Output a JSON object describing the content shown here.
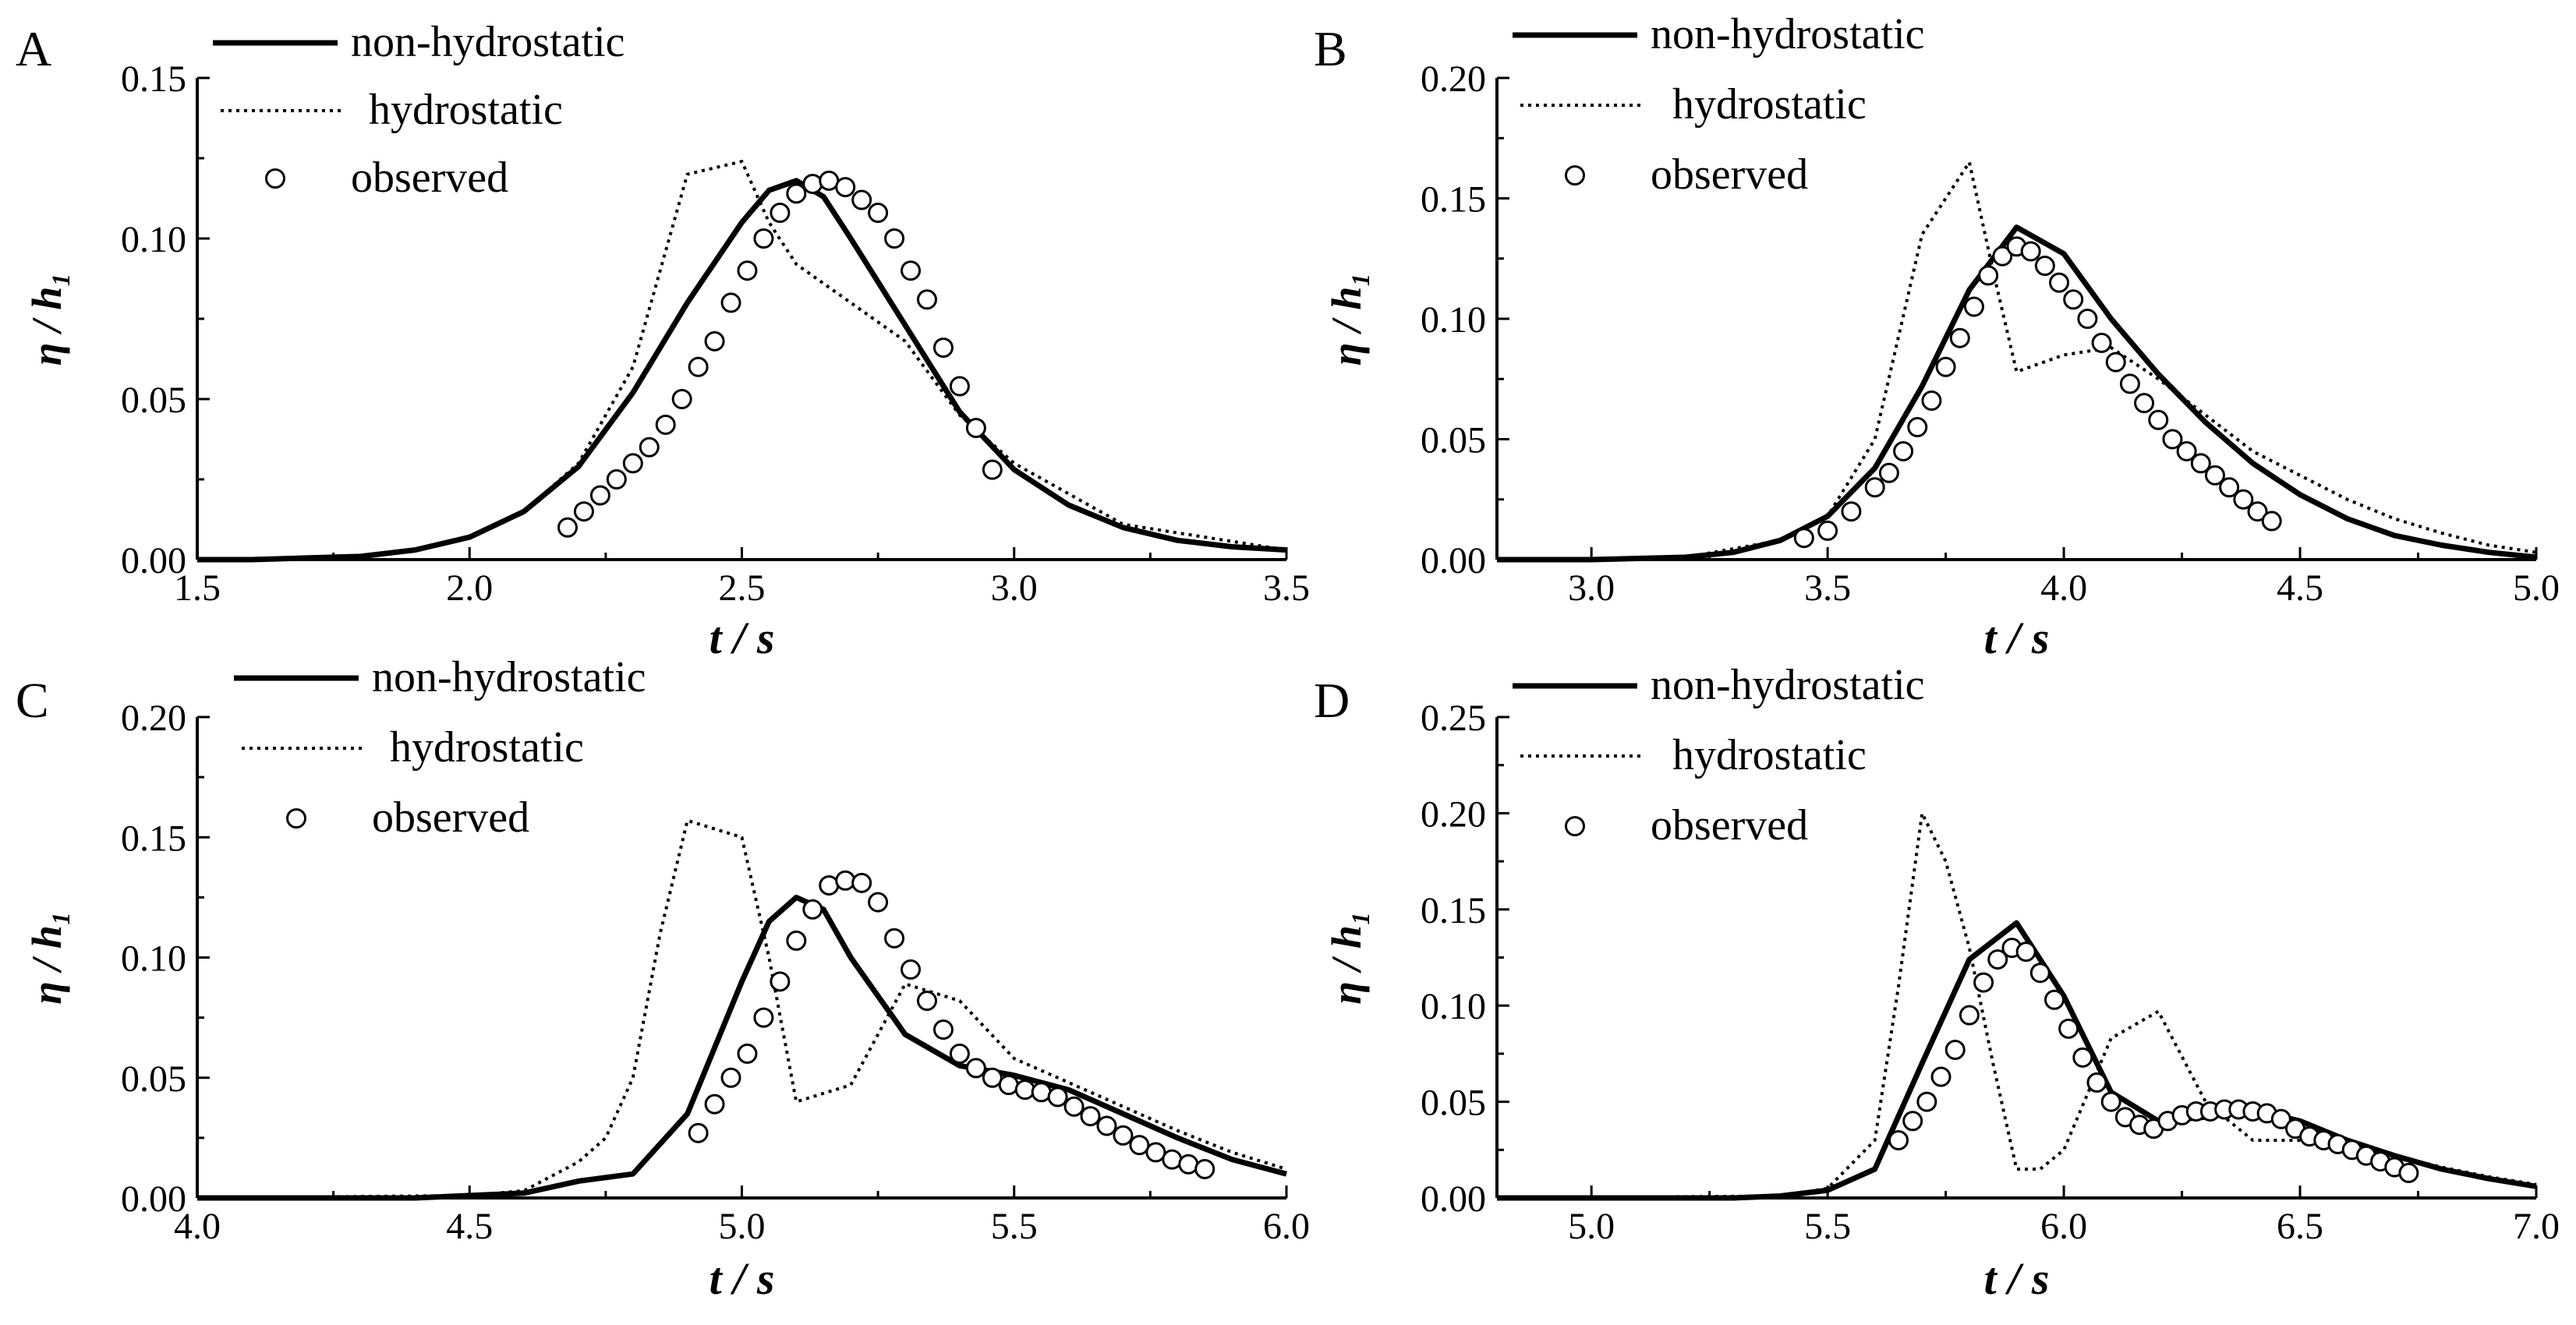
{
  "chart_data": [
    {
      "type": "line",
      "panel_label": "A",
      "xlabel": "t / s",
      "ylabel": "η / h₁",
      "xlim": [
        1.5,
        3.5
      ],
      "ylim": [
        0.0,
        0.15
      ],
      "xticks": [
        "1.5",
        "2.0",
        "2.5",
        "3.0",
        "3.5"
      ],
      "yticks": [
        "0.00",
        "0.05",
        "0.10",
        "0.15"
      ],
      "legend": [
        "non-hydrostatic",
        "hydrostatic",
        "observed"
      ],
      "series": [
        {
          "name": "non-hydrostatic",
          "style": "solid",
          "x": [
            1.5,
            1.6,
            1.7,
            1.8,
            1.9,
            2.0,
            2.1,
            2.2,
            2.3,
            2.4,
            2.5,
            2.55,
            2.6,
            2.65,
            2.7,
            2.8,
            2.9,
            3.0,
            3.1,
            3.2,
            3.3,
            3.4,
            3.5
          ],
          "y": [
            0,
            0,
            0.0005,
            0.001,
            0.003,
            0.007,
            0.015,
            0.029,
            0.052,
            0.08,
            0.105,
            0.115,
            0.118,
            0.113,
            0.1,
            0.073,
            0.046,
            0.028,
            0.017,
            0.01,
            0.006,
            0.004,
            0.003
          ]
        },
        {
          "name": "hydrostatic",
          "style": "dotted",
          "x": [
            1.5,
            1.8,
            1.9,
            2.0,
            2.1,
            2.2,
            2.3,
            2.35,
            2.4,
            2.5,
            2.55,
            2.6,
            2.7,
            2.8,
            2.9,
            3.0,
            3.2,
            3.5
          ],
          "y": [
            0,
            0.001,
            0.003,
            0.007,
            0.015,
            0.03,
            0.06,
            0.09,
            0.12,
            0.124,
            0.105,
            0.092,
            0.08,
            0.068,
            0.045,
            0.03,
            0.011,
            0.003
          ]
        },
        {
          "name": "observed",
          "style": "markers",
          "x": [
            2.18,
            2.21,
            2.24,
            2.27,
            2.3,
            2.33,
            2.36,
            2.39,
            2.42,
            2.45,
            2.48,
            2.51,
            2.54,
            2.57,
            2.6,
            2.63,
            2.66,
            2.69,
            2.72,
            2.75,
            2.78,
            2.81,
            2.84,
            2.87,
            2.9,
            2.93,
            2.96
          ],
          "y": [
            0.01,
            0.015,
            0.02,
            0.025,
            0.03,
            0.035,
            0.042,
            0.05,
            0.06,
            0.068,
            0.08,
            0.09,
            0.1,
            0.108,
            0.114,
            0.117,
            0.118,
            0.116,
            0.112,
            0.108,
            0.1,
            0.09,
            0.081,
            0.066,
            0.054,
            0.041,
            0.028
          ]
        }
      ]
    },
    {
      "type": "line",
      "panel_label": "B",
      "xlabel": "t / s",
      "ylabel": "η / h₁",
      "xlim": [
        2.8,
        5.0
      ],
      "ylim": [
        0.0,
        0.2
      ],
      "xticks": [
        "3.0",
        "3.5",
        "4.0",
        "4.5",
        "5.0"
      ],
      "yticks": [
        "0.00",
        "0.05",
        "0.10",
        "0.15",
        "0.20"
      ],
      "legend": [
        "non-hydrostatic",
        "hydrostatic",
        "observed"
      ],
      "series": [
        {
          "name": "non-hydrostatic",
          "style": "solid",
          "x": [
            2.8,
            3.0,
            3.2,
            3.3,
            3.4,
            3.5,
            3.6,
            3.7,
            3.8,
            3.9,
            4.0,
            4.1,
            4.2,
            4.3,
            4.4,
            4.5,
            4.6,
            4.7,
            4.8,
            4.9,
            5.0
          ],
          "y": [
            0,
            0,
            0.001,
            0.003,
            0.008,
            0.018,
            0.038,
            0.072,
            0.112,
            0.138,
            0.127,
            0.1,
            0.077,
            0.057,
            0.04,
            0.027,
            0.017,
            0.01,
            0.006,
            0.003,
            0.001
          ]
        },
        {
          "name": "hydrostatic",
          "style": "dotted",
          "x": [
            2.8,
            3.2,
            3.4,
            3.5,
            3.6,
            3.7,
            3.8,
            3.85,
            3.9,
            4.0,
            4.1,
            4.2,
            4.3,
            4.4,
            4.5,
            4.6,
            4.7,
            4.8,
            4.9,
            5.0
          ],
          "y": [
            0,
            0.001,
            0.008,
            0.018,
            0.05,
            0.135,
            0.165,
            0.12,
            0.078,
            0.085,
            0.088,
            0.075,
            0.06,
            0.045,
            0.035,
            0.025,
            0.017,
            0.011,
            0.006,
            0.003
          ]
        },
        {
          "name": "observed",
          "style": "markers",
          "x": [
            3.45,
            3.5,
            3.55,
            3.6,
            3.63,
            3.66,
            3.69,
            3.72,
            3.75,
            3.78,
            3.81,
            3.84,
            3.87,
            3.9,
            3.93,
            3.96,
            3.99,
            4.02,
            4.05,
            4.08,
            4.11,
            4.14,
            4.17,
            4.2,
            4.23,
            4.26,
            4.29,
            4.32,
            4.35,
            4.38,
            4.41,
            4.44
          ],
          "y": [
            0.009,
            0.012,
            0.02,
            0.03,
            0.036,
            0.045,
            0.055,
            0.066,
            0.08,
            0.092,
            0.105,
            0.118,
            0.126,
            0.13,
            0.128,
            0.122,
            0.115,
            0.108,
            0.1,
            0.09,
            0.082,
            0.073,
            0.065,
            0.058,
            0.05,
            0.045,
            0.04,
            0.035,
            0.03,
            0.025,
            0.02,
            0.016
          ]
        }
      ]
    },
    {
      "type": "line",
      "panel_label": "C",
      "xlabel": "t / s",
      "ylabel": "η / h₁",
      "xlim": [
        4.0,
        6.0
      ],
      "ylim": [
        0.0,
        0.2
      ],
      "xticks": [
        "4.0",
        "4.5",
        "5.0",
        "5.5",
        "6.0"
      ],
      "yticks": [
        "0.00",
        "0.05",
        "0.10",
        "0.15",
        "0.20"
      ],
      "legend": [
        "non-hydrostatic",
        "hydrostatic",
        "observed"
      ],
      "series": [
        {
          "name": "non-hydrostatic",
          "style": "solid",
          "x": [
            4.0,
            4.4,
            4.5,
            4.6,
            4.7,
            4.8,
            4.9,
            5.0,
            5.05,
            5.1,
            5.15,
            5.2,
            5.3,
            5.4,
            5.5,
            5.6,
            5.7,
            5.8,
            5.9,
            6.0
          ],
          "y": [
            0,
            0,
            0.001,
            0.002,
            0.007,
            0.01,
            0.035,
            0.09,
            0.115,
            0.125,
            0.12,
            0.1,
            0.068,
            0.055,
            0.051,
            0.045,
            0.035,
            0.025,
            0.016,
            0.01
          ]
        },
        {
          "name": "hydrostatic",
          "style": "dotted",
          "x": [
            4.0,
            4.5,
            4.6,
            4.7,
            4.75,
            4.8,
            4.85,
            4.9,
            5.0,
            5.05,
            5.1,
            5.2,
            5.3,
            5.4,
            5.5,
            5.6,
            5.7,
            5.8,
            5.9,
            6.0
          ],
          "y": [
            0,
            0.001,
            0.003,
            0.015,
            0.025,
            0.05,
            0.11,
            0.157,
            0.15,
            0.1,
            0.04,
            0.047,
            0.089,
            0.082,
            0.058,
            0.048,
            0.038,
            0.028,
            0.019,
            0.012
          ]
        },
        {
          "name": "observed",
          "style": "markers",
          "x": [
            4.92,
            4.95,
            4.98,
            5.01,
            5.04,
            5.07,
            5.1,
            5.13,
            5.16,
            5.19,
            5.22,
            5.25,
            5.28,
            5.31,
            5.34,
            5.37,
            5.4,
            5.43,
            5.46,
            5.49,
            5.52,
            5.55,
            5.58,
            5.61,
            5.64,
            5.67,
            5.7,
            5.73,
            5.76,
            5.79,
            5.82,
            5.85
          ],
          "y": [
            0.027,
            0.039,
            0.05,
            0.06,
            0.075,
            0.09,
            0.107,
            0.12,
            0.13,
            0.132,
            0.131,
            0.123,
            0.108,
            0.095,
            0.082,
            0.07,
            0.06,
            0.054,
            0.05,
            0.047,
            0.045,
            0.044,
            0.042,
            0.038,
            0.034,
            0.03,
            0.026,
            0.022,
            0.019,
            0.016,
            0.014,
            0.012
          ]
        }
      ]
    },
    {
      "type": "line",
      "panel_label": "D",
      "xlabel": "t / s",
      "ylabel": "η / h₁",
      "xlim": [
        4.8,
        7.0
      ],
      "ylim": [
        0.0,
        0.25
      ],
      "xticks": [
        "5.0",
        "5.5",
        "6.0",
        "6.5",
        "7.0"
      ],
      "yticks": [
        "0.00",
        "0.05",
        "0.10",
        "0.15",
        "0.20",
        "0.25"
      ],
      "legend": [
        "non-hydrostatic",
        "hydrostatic",
        "observed"
      ],
      "series": [
        {
          "name": "non-hydrostatic",
          "style": "solid",
          "x": [
            4.8,
            5.3,
            5.4,
            5.5,
            5.6,
            5.7,
            5.8,
            5.9,
            6.0,
            6.1,
            6.2,
            6.3,
            6.4,
            6.5,
            6.6,
            6.7,
            6.8,
            6.9,
            7.0
          ],
          "y": [
            0,
            0,
            0.001,
            0.004,
            0.015,
            0.07,
            0.124,
            0.143,
            0.105,
            0.055,
            0.04,
            0.042,
            0.046,
            0.04,
            0.03,
            0.022,
            0.015,
            0.01,
            0.006
          ]
        },
        {
          "name": "hydrostatic",
          "style": "dotted",
          "x": [
            4.8,
            5.4,
            5.5,
            5.6,
            5.65,
            5.7,
            5.75,
            5.8,
            5.85,
            5.9,
            5.95,
            6.0,
            6.1,
            6.2,
            6.3,
            6.4,
            6.5,
            6.6,
            6.7,
            6.8,
            6.9,
            7.0
          ],
          "y": [
            0,
            0.001,
            0.005,
            0.03,
            0.11,
            0.2,
            0.175,
            0.13,
            0.07,
            0.015,
            0.015,
            0.025,
            0.083,
            0.097,
            0.05,
            0.03,
            0.03,
            0.028,
            0.022,
            0.016,
            0.011,
            0.007
          ]
        },
        {
          "name": "observed",
          "style": "markers",
          "x": [
            5.65,
            5.68,
            5.71,
            5.74,
            5.77,
            5.8,
            5.83,
            5.86,
            5.89,
            5.92,
            5.95,
            5.98,
            6.01,
            6.04,
            6.07,
            6.1,
            6.13,
            6.16,
            6.19,
            6.22,
            6.25,
            6.28,
            6.31,
            6.34,
            6.37,
            6.4,
            6.43,
            6.46,
            6.49,
            6.52,
            6.55,
            6.58,
            6.61,
            6.64,
            6.67,
            6.7,
            6.73
          ],
          "y": [
            0.03,
            0.04,
            0.05,
            0.063,
            0.077,
            0.095,
            0.112,
            0.124,
            0.13,
            0.128,
            0.117,
            0.103,
            0.088,
            0.073,
            0.06,
            0.05,
            0.042,
            0.038,
            0.036,
            0.04,
            0.043,
            0.045,
            0.045,
            0.046,
            0.046,
            0.045,
            0.044,
            0.041,
            0.036,
            0.032,
            0.03,
            0.028,
            0.025,
            0.022,
            0.019,
            0.016,
            0.013
          ]
        }
      ]
    }
  ]
}
